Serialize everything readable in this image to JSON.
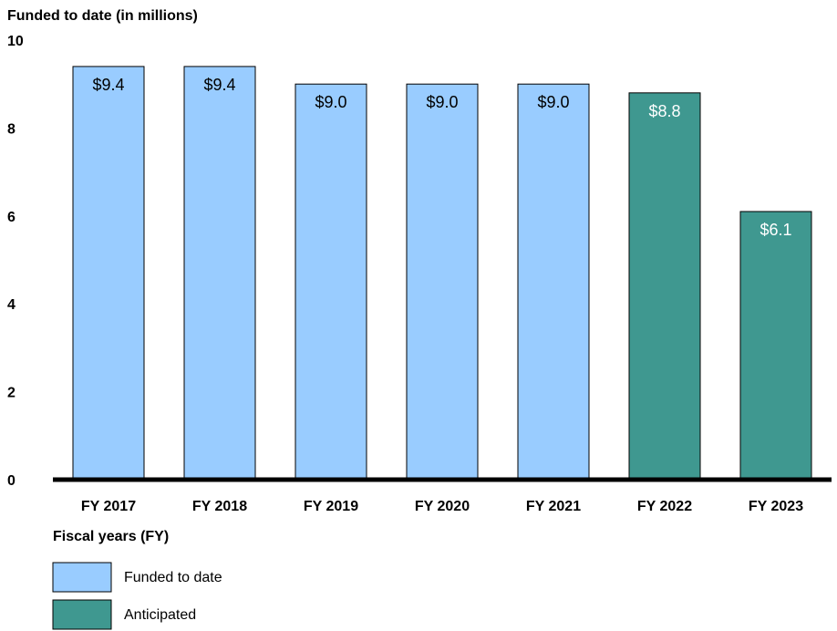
{
  "chart_data": {
    "type": "bar",
    "title": "",
    "ylabel": "Funded to date (in millions)",
    "xlabel": "Fiscal years (FY)",
    "ylim": [
      0,
      10
    ],
    "yticks": [
      "0",
      "2",
      "4",
      "6",
      "8",
      "10"
    ],
    "categories": [
      "FY 2017",
      "FY 2018",
      "FY 2019",
      "FY 2020",
      "FY 2021",
      "FY 2022",
      "FY 2023"
    ],
    "values": [
      9.4,
      9.4,
      9.0,
      9.0,
      9.0,
      8.8,
      6.1
    ],
    "data_labels": [
      "$9.4",
      "$9.4",
      "$9.0",
      "$9.0",
      "$9.0",
      "$8.8",
      "$6.1"
    ],
    "bar_status": [
      "Funded to date",
      "Funded to date",
      "Funded to date",
      "Funded to date",
      "Funded to date",
      "Anticipated",
      "Anticipated"
    ],
    "grid": false,
    "legend": {
      "placement": "bottom-left",
      "entries": [
        {
          "name": "Funded to date",
          "color": "#99ccff",
          "label_color": "#000000"
        },
        {
          "name": "Anticipated",
          "color": "#3f9890",
          "label_color": "#ffffff"
        }
      ]
    }
  }
}
